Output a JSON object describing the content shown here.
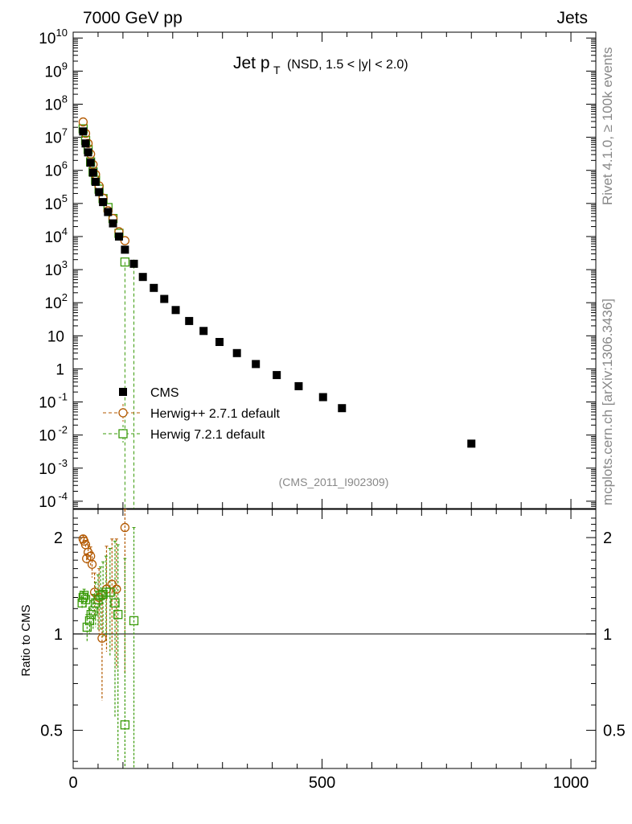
{
  "header": {
    "energy": "7000 GeV pp",
    "category": "Jets"
  },
  "plot_title": {
    "main": "Jet p",
    "sub": "T",
    "cuts": "(NSD, 1.5 < |y| < 2.0)"
  },
  "analysis_tag": "(CMS_2011_I902309)",
  "side_text": {
    "rivet": "Rivet 4.1.0, ≥ 100k events",
    "mcplots": "mcplots.cern.ch [arXiv:1306.3436]"
  },
  "ratio_ylabel": "Ratio to CMS",
  "colors": {
    "data": "#000000",
    "herwigpp": "#b35900",
    "herwig7": "#3a9b0a"
  },
  "chart_data": [
    {
      "type": "scatter",
      "panel": "main",
      "y_scale": "log",
      "xlim": [
        0,
        1050
      ],
      "ylim": [
        6e-05,
        15000000000.0
      ],
      "y_tick_labels": [
        "10^10",
        "10^9",
        "10^8",
        "10^7",
        "10^6",
        "10^5",
        "10^4",
        "10^3",
        "10^2",
        "10",
        "1",
        "10^-1",
        "10^-2",
        "10^-3",
        "10^-4"
      ],
      "x_tick_labels": [
        "0",
        "500",
        "1000"
      ],
      "legend_position": "middle-left",
      "series": [
        {
          "name": "CMS",
          "marker": "filled-square",
          "x": [
            20,
            25,
            30,
            35,
            40,
            45,
            52,
            60,
            70,
            80,
            92,
            104,
            122,
            140,
            162,
            183,
            206,
            233,
            262,
            294,
            329,
            367,
            409,
            453,
            502,
            540,
            800
          ],
          "y": [
            15000000.0,
            6500000.0,
            3500000.0,
            1700000.0,
            850000.0,
            450000.0,
            220000.0,
            110000.0,
            55000.0,
            25000.0,
            10000.0,
            4000.0,
            1500.0,
            600,
            280,
            130,
            60,
            28,
            14,
            6.5,
            3.0,
            1.4,
            0.65,
            0.3,
            0.14,
            0.065,
            0.0055
          ]
        },
        {
          "name": "Herwig++ 2.7.1 default",
          "marker": "open-circle",
          "x": [
            20,
            25,
            30,
            35,
            40,
            45,
            52,
            60,
            70,
            80,
            92,
            104
          ],
          "y": [
            29000000.0,
            13000000.0,
            6500000.0,
            3100000.0,
            1500000.0,
            750000.0,
            340000.0,
            145000.0,
            60000.0,
            35000.0,
            14000.0,
            7500.0
          ]
        },
        {
          "name": "Herwig 7.2.1 default",
          "marker": "open-square",
          "x": [
            20,
            25,
            30,
            35,
            40,
            45,
            52,
            60,
            70,
            80,
            92,
            104
          ],
          "y": [
            18000000.0,
            8000000.0,
            4300000.0,
            1800000.0,
            900000.0,
            500000.0,
            270000.0,
            140000.0,
            75000.0,
            35000.0,
            12500.0,
            1700.0
          ]
        }
      ]
    },
    {
      "type": "scatter",
      "panel": "ratio",
      "ylabel": "Ratio to CMS",
      "y_scale": "log",
      "xlim": [
        0,
        1050
      ],
      "ylim": [
        0.38,
        2.45
      ],
      "y_tick_labels": [
        "2",
        "1",
        "0.5"
      ],
      "x_tick_labels": [
        "0",
        "500",
        "1000"
      ],
      "reference_line": 1,
      "series": [
        {
          "name": "Herwig++ 2.7.1 default",
          "x": [
            20,
            22,
            25,
            27,
            30,
            35,
            38,
            43,
            52,
            58,
            67,
            78,
            87,
            104
          ],
          "y": [
            1.98,
            1.95,
            1.9,
            1.72,
            1.8,
            1.75,
            1.65,
            1.35,
            1.3,
            0.97,
            1.38,
            1.43,
            1.38,
            2.15
          ],
          "err": [
            0.05,
            0.05,
            0.06,
            0.06,
            0.1,
            0.12,
            0.15,
            0.2,
            0.3,
            0.35,
            0.5,
            0.55,
            0.6,
            1.4
          ]
        },
        {
          "name": "Herwig 7.2.1 default",
          "x": [
            18,
            20,
            22,
            25,
            28,
            33,
            36,
            40,
            45,
            50,
            55,
            60,
            66,
            74,
            84,
            90,
            104,
            122
          ],
          "y": [
            1.25,
            1.3,
            1.32,
            1.28,
            1.05,
            1.1,
            1.15,
            1.18,
            1.25,
            1.28,
            1.32,
            1.33,
            1.35,
            1.35,
            1.25,
            1.15,
            0.52,
            1.1
          ],
          "err": [
            0.05,
            0.05,
            0.06,
            0.06,
            0.1,
            0.1,
            0.12,
            0.15,
            0.2,
            0.25,
            0.3,
            0.35,
            0.4,
            0.5,
            0.7,
            0.75,
            1.2,
            1.05
          ]
        }
      ]
    }
  ]
}
